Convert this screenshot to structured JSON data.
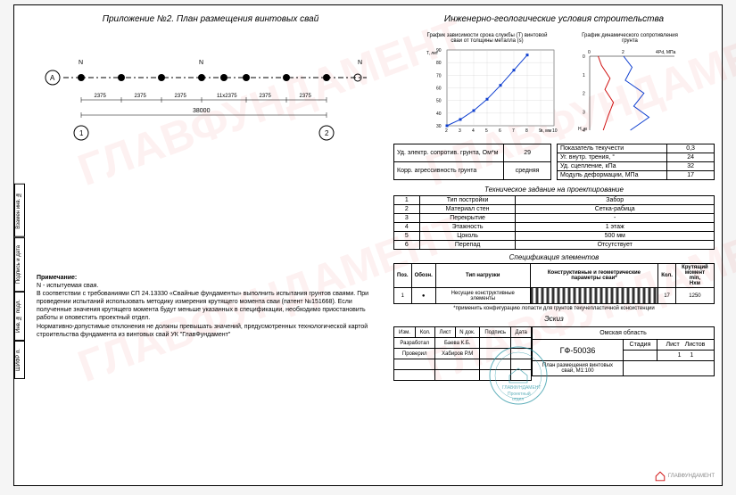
{
  "left": {
    "title": "Приложение №2. План размещения винтовых свай",
    "plan": {
      "axis_letter": "А",
      "axis_num_left": "1",
      "axis_num_right": "2",
      "n_label": "N",
      "dims": [
        "2375",
        "2375",
        "2375",
        "11x2375",
        "2375",
        "2375"
      ],
      "total": "38000",
      "pile_color": "#000000",
      "n_pile_color": "#000000",
      "line_color": "#000000"
    },
    "note_title": "Примечание:",
    "note_lines": [
      "N - испытуемая свая.",
      "В соответствии с требованиями СП 24.13330 «Свайные фундаменты» выполнить испытания грунтов сваями. При проведении испытаний использовать методику измерения крутящего момента сваи (патент №151668). Если полученные значения крутящего момента будут меньше указанных в спецификации, необходимо приостановить работы и оповестить проектный отдел.",
      "Нормативно-допустимые отклонения не должны превышать значений, предусмотренных технологической картой строительства фундамента из винтовых свай УК \"ГлавФундамент\""
    ]
  },
  "right": {
    "geo_title": "Инженерно-геологические условия строительства",
    "chart1": {
      "title": "График зависимости срока службы (Т) винтовой\nсваи от толщины металла (s)",
      "y_label": "T,\nлет",
      "x_label": "s, мм",
      "y_ticks": [
        30,
        40,
        50,
        60,
        70,
        80,
        90
      ],
      "x_ticks": [
        2,
        3,
        4,
        5,
        6,
        7,
        8,
        9,
        10
      ],
      "points": [
        [
          2,
          30
        ],
        [
          3,
          35
        ],
        [
          4,
          42
        ],
        [
          5,
          51
        ],
        [
          6,
          62
        ],
        [
          7,
          74
        ],
        [
          8,
          86
        ]
      ],
      "line_color": "#1040d0",
      "marker": "square",
      "marker_size": 3,
      "grid_color": "#cccccc",
      "bg": "#ffffff"
    },
    "chart2": {
      "title": "График динамического сопротивления грунта",
      "y_label": "H, м",
      "x_label": "Pd, МПа",
      "x_ticks": [
        0,
        2,
        4
      ],
      "y_ticks": [
        0,
        1,
        2,
        3,
        4
      ],
      "series": [
        {
          "color": "#d01010",
          "points": [
            [
              0.5,
              0
            ],
            [
              0.7,
              0.5
            ],
            [
              1.2,
              1.2
            ],
            [
              0.9,
              1.8
            ],
            [
              1.4,
              2.5
            ],
            [
              1.1,
              3.2
            ],
            [
              0.8,
              4
            ]
          ]
        },
        {
          "color": "#1040d0",
          "points": [
            [
              2.0,
              0
            ],
            [
              2.5,
              0.6
            ],
            [
              2.1,
              1.3
            ],
            [
              3.2,
              2.0
            ],
            [
              2.6,
              2.7
            ],
            [
              3.5,
              3.3
            ],
            [
              2.4,
              4
            ]
          ]
        }
      ],
      "grid_color": "#cccccc",
      "bg": "#ffffff"
    },
    "t1": [
      [
        "Уд. электр. сопротив. грунта, Ом*м",
        "29"
      ],
      [
        "Корр. агрессивность грунта",
        "средняя"
      ]
    ],
    "t2": [
      [
        "Показатель текучести",
        "0,3"
      ],
      [
        "Уг. внутр. трения, °",
        "24"
      ],
      [
        "Уд. сцепление, кПа",
        "32"
      ],
      [
        "Модуль деформации, МПа",
        "17"
      ]
    ],
    "tz_title": "Техническое задание на проектирование",
    "tz": [
      [
        "1",
        "Тип постройки",
        "Забор"
      ],
      [
        "2",
        "Материал стен",
        "Сетка-рабица"
      ],
      [
        "3",
        "Перекрытие",
        "-"
      ],
      [
        "4",
        "Этажность",
        "1 этаж"
      ],
      [
        "5",
        "Цоколь",
        "500 мм"
      ],
      [
        "6",
        "Перепад",
        "Отсутствует"
      ]
    ],
    "spec_title": "Спецификация элементов",
    "spec_head": [
      "Поз.",
      "Обозн.",
      "Тип нагрузки",
      "Конструктивные и геометрические\nпараметры сваи*",
      "Кол.",
      "Крутящий\nмомент min,\nНхм"
    ],
    "spec_row": [
      "1",
      "●",
      "Несущие конструктивные элементы",
      "",
      "17",
      "1250"
    ],
    "spec_mask_color": "#333333",
    "footnote": "*применить конфигурацию лопасти для грунтов текучепластичной консистенции",
    "sketch_title": "Эскиз",
    "stamp": {
      "head": [
        "Изм.",
        "Кол.",
        "Лист",
        "N док.",
        "Подпись",
        "Дата"
      ],
      "rows": [
        [
          "Разработал",
          "Баева К.Б.",
          "",
          ""
        ],
        [
          "Проверил",
          "Хабиров Р.М",
          "",
          ""
        ]
      ],
      "region": "Омская область",
      "project": "ГФ-50036",
      "doc": "План размещения винтовых\nсвай, М1:100",
      "col_head": [
        "Стадия",
        "Лист",
        "Листов"
      ],
      "col_vals": [
        "",
        "1",
        "1"
      ]
    }
  },
  "side": [
    "Взамен инв. №",
    "Подпись и дата",
    "Инв. № подл.",
    "ШИФР п."
  ],
  "logo_text": "ГЛАВФУНДАМЕНТ",
  "seal": {
    "text1": "ГЛАВФУНДАМЕНТ",
    "text2": "Проектный",
    "text3": "отдел",
    "color": "#2090a0"
  }
}
